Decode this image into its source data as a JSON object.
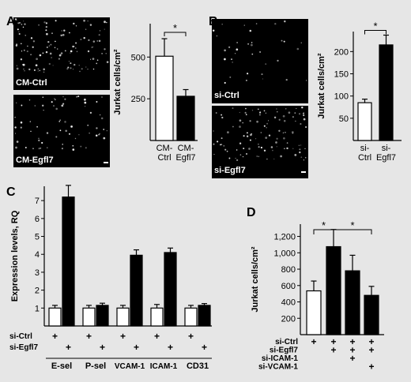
{
  "figure": {
    "background": "#e6e6e6",
    "panels": [
      {
        "letter": "A",
        "images": [
          "CM-Ctrl",
          "CM-Egfl7"
        ]
      },
      {
        "letter": "B",
        "images": [
          "si-Ctrl",
          "si-Egfl7"
        ]
      },
      {
        "letter": "C"
      },
      {
        "letter": "D"
      }
    ]
  },
  "chart_data": [
    {
      "panel": "A",
      "type": "bar",
      "ylabel": "Jurkat cells/cm²",
      "ylim": [
        0,
        700
      ],
      "yticks": [
        250,
        500
      ],
      "categories": [
        [
          "CM-",
          "Ctrl"
        ],
        [
          "CM-",
          "Egfl7"
        ]
      ],
      "values": [
        505,
        265
      ],
      "errors": [
        105,
        40
      ],
      "bar_colors": [
        "#ffffff",
        "#000000"
      ],
      "significance": [
        {
          "from": 0,
          "to": 1,
          "label": "*"
        }
      ]
    },
    {
      "panel": "B",
      "type": "bar",
      "ylabel": "Jurkat cells/cm²",
      "ylim": [
        0,
        245
      ],
      "yticks": [
        50,
        100,
        150,
        200
      ],
      "categories": [
        [
          "si-",
          "Ctrl"
        ],
        [
          "si-",
          "Egfl7"
        ]
      ],
      "values": [
        85,
        215
      ],
      "errors": [
        8,
        22
      ],
      "bar_colors": [
        "#ffffff",
        "#000000"
      ],
      "significance": [
        {
          "from": 0,
          "to": 1,
          "label": "*"
        }
      ]
    },
    {
      "panel": "C",
      "type": "bar",
      "ylabel": "Expression levels, RQ",
      "ylim": [
        0,
        7.8
      ],
      "yticks": [
        1,
        2,
        3,
        4,
        5,
        6,
        7
      ],
      "categories": [
        "E-sel",
        "P-sel",
        "VCAM-1",
        "ICAM-1",
        "CD31"
      ],
      "series": [
        {
          "values": [
            1.0,
            1.0,
            1.0,
            1.0,
            1.0
          ],
          "errors": [
            0.15,
            0.15,
            0.15,
            0.2,
            0.15
          ],
          "color": "#ffffff"
        },
        {
          "values": [
            7.2,
            1.15,
            3.95,
            4.1,
            1.15
          ],
          "errors": [
            0.65,
            0.12,
            0.3,
            0.25,
            0.1
          ],
          "color": "#000000"
        }
      ],
      "condition_rows": [
        {
          "label": "si-Ctrl",
          "marks": [
            "+",
            "",
            "+",
            "",
            "+",
            "",
            "+",
            "",
            "+",
            ""
          ]
        },
        {
          "label": "si-Egfl7",
          "marks": [
            "",
            "+",
            "",
            "+",
            "",
            "+",
            "",
            "+",
            "",
            "+"
          ]
        }
      ]
    },
    {
      "panel": "D",
      "type": "bar",
      "ylabel": "Jurkat cells/cm²",
      "ylim": [
        0,
        1350
      ],
      "yticks": [
        200,
        400,
        600,
        800,
        1000,
        1200
      ],
      "ytick_labels": [
        "200",
        "400",
        "600",
        "800",
        "1,000",
        "1,200"
      ],
      "values": [
        535,
        1075,
        780,
        480
      ],
      "errors": [
        120,
        210,
        190,
        110
      ],
      "bar_colors": [
        "#ffffff",
        "#000000",
        "#000000",
        "#000000"
      ],
      "significance": [
        {
          "from": 0,
          "to": 1,
          "label": "*"
        },
        {
          "from": 1,
          "to": 3,
          "label": "*"
        }
      ],
      "condition_rows": [
        {
          "label": "si-Ctrl",
          "marks": [
            "+",
            "+",
            "+",
            "+"
          ]
        },
        {
          "label": "si-Egfl7",
          "marks": [
            "",
            "+",
            "+",
            "+"
          ]
        },
        {
          "label": "si-ICAM-1",
          "marks": [
            "",
            "",
            "+",
            ""
          ]
        },
        {
          "label": "si-VCAM-1",
          "marks": [
            "",
            "",
            "",
            "+"
          ]
        }
      ]
    }
  ]
}
